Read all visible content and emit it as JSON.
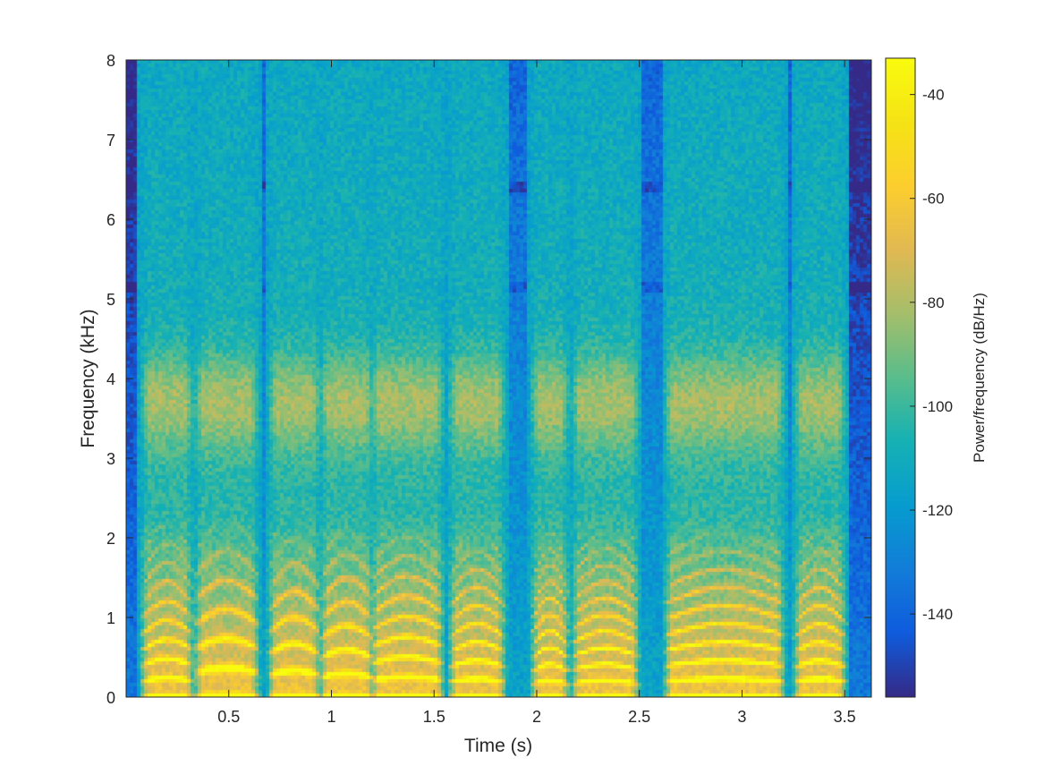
{
  "chart_data": {
    "type": "heatmap",
    "title": "",
    "xlabel": "Time (s)",
    "ylabel": "Frequency (kHz)",
    "colorbar_label": "Power/frequency (dB/Hz)",
    "colormap": "parula",
    "xlim": [
      0,
      3.63
    ],
    "ylim": [
      0,
      8
    ],
    "clim": [
      -156,
      -33
    ],
    "x_ticks": [
      0.5,
      1,
      1.5,
      2,
      2.5,
      3,
      3.5
    ],
    "x_tick_labels": [
      "0.5",
      "1",
      "1.5",
      "2",
      "2.5",
      "3",
      "3.5"
    ],
    "y_ticks": [
      0,
      1,
      2,
      3,
      4,
      5,
      6,
      7,
      8
    ],
    "y_tick_labels": [
      "0",
      "1",
      "2",
      "3",
      "4",
      "5",
      "6",
      "7",
      "8"
    ],
    "colorbar_ticks": [
      -40,
      -60,
      -80,
      -100,
      -120,
      -140
    ],
    "colorbar_tick_labels": [
      "-40",
      "-60",
      "-80",
      "-100",
      "-120",
      "-140"
    ],
    "grid": false,
    "voiced_segments": [
      {
        "start": 0.1,
        "end": 0.3,
        "f0": 0.21,
        "power_db": -55
      },
      {
        "start": 0.36,
        "end": 0.62,
        "f0": 0.32,
        "power_db": -52
      },
      {
        "start": 0.72,
        "end": 0.92,
        "f0": 0.29,
        "power_db": -54
      },
      {
        "start": 0.97,
        "end": 1.18,
        "f0": 0.26,
        "power_db": -50
      },
      {
        "start": 1.22,
        "end": 1.52,
        "f0": 0.22,
        "power_db": -53
      },
      {
        "start": 1.6,
        "end": 1.82,
        "f0": 0.2,
        "power_db": -50
      },
      {
        "start": 2.0,
        "end": 2.13,
        "f0": 0.18,
        "power_db": -52
      },
      {
        "start": 2.2,
        "end": 2.47,
        "f0": 0.18,
        "power_db": -52
      },
      {
        "start": 2.65,
        "end": 3.18,
        "f0": 0.2,
        "power_db": -50
      },
      {
        "start": 3.28,
        "end": 3.48,
        "f0": 0.2,
        "power_db": -52
      }
    ],
    "noise_floor_db": -115,
    "silent_band_khz": [
      5.15,
      6.4
    ]
  }
}
